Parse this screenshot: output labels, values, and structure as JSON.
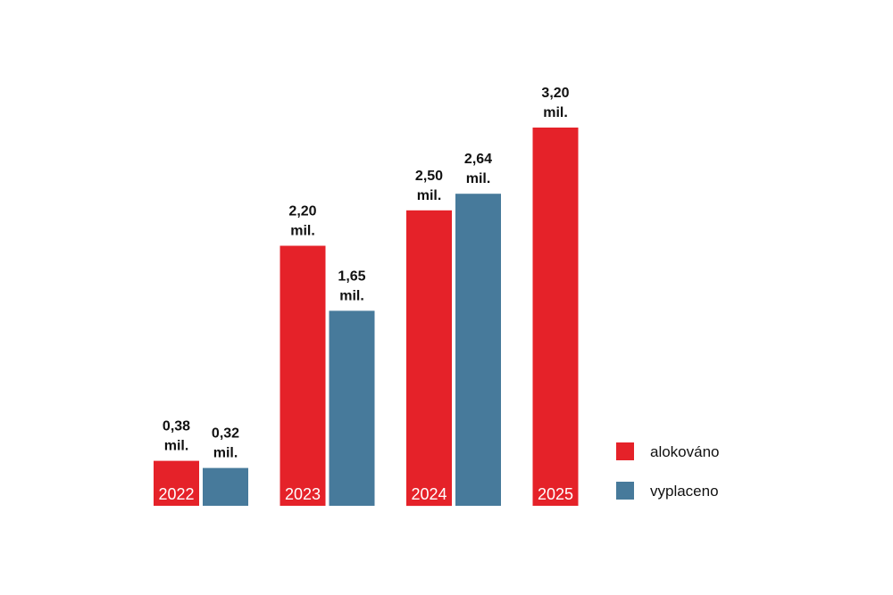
{
  "chart_data": {
    "type": "bar",
    "title": "",
    "xlabel": "",
    "ylabel": "",
    "ylim": [
      0,
      3.2
    ],
    "categories": [
      "2022",
      "2023",
      "2024",
      "2025"
    ],
    "series": [
      {
        "name": "alokováno",
        "color": "#e52229",
        "values": [
          0.38,
          2.2,
          2.5,
          3.2
        ],
        "labels": [
          "0,38 mil.",
          "2,20 mil.",
          "2,50 mil.",
          "3,20 mil."
        ]
      },
      {
        "name": "vyplaceno",
        "color": "#477a9b",
        "values": [
          0.32,
          1.65,
          2.64,
          null
        ],
        "labels": [
          "0,32 mil.",
          "1,65 mil.",
          "2,64 mil.",
          null
        ]
      }
    ],
    "legend_position": "right",
    "grid": false
  }
}
